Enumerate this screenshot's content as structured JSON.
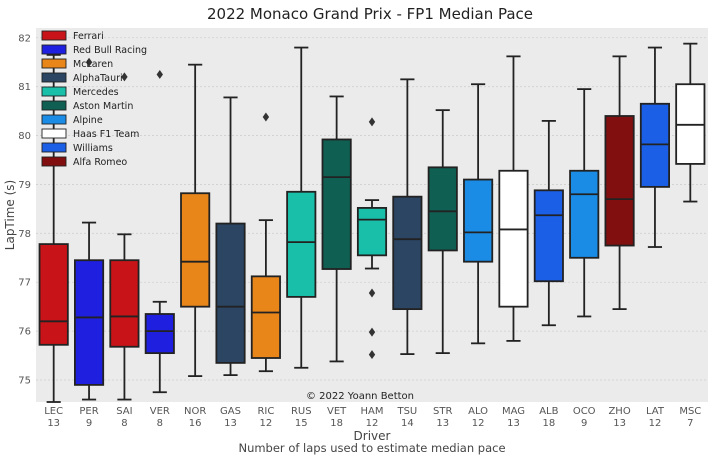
{
  "chart_data": {
    "type": "box",
    "title": "2022 Monaco Grand Prix - FP1 Median Pace",
    "ylabel": "LapTime (s)",
    "xlabel": "Driver",
    "xlabel2": "Number of laps used to estimate median pace",
    "watermark": "© 2022 Yoann Betton",
    "ylim": [
      74.55,
      82.2
    ],
    "yticks": [
      75,
      76,
      77,
      78,
      79,
      80,
      81,
      82
    ],
    "grid": true,
    "legend_position": "top-left",
    "legend": [
      {
        "name": "Ferrari",
        "color": "#c81418"
      },
      {
        "name": "Red Bull Racing",
        "color": "#1f1fe0"
      },
      {
        "name": "McLaren",
        "color": "#e8861a"
      },
      {
        "name": "AlphaTauri",
        "color": "#2b4562"
      },
      {
        "name": "Mercedes",
        "color": "#19bfa8"
      },
      {
        "name": "Aston Martin",
        "color": "#0f5f52"
      },
      {
        "name": "Alpine",
        "color": "#1a8ce6"
      },
      {
        "name": "Haas F1 Team",
        "color": "#ffffff"
      },
      {
        "name": "Williams",
        "color": "#1a5fe6"
      },
      {
        "name": "Alfa Romeo",
        "color": "#820f0f"
      }
    ],
    "drivers": [
      {
        "driver": "LEC",
        "laps": "13",
        "team": "Ferrari",
        "whisker_low": 74.55,
        "q1": 75.72,
        "median": 76.2,
        "q3": 77.78,
        "whisker_high": 81.65,
        "outliers": [
          81.75
        ]
      },
      {
        "driver": "PER",
        "laps": "9",
        "team": "Red Bull Racing",
        "whisker_low": 74.6,
        "q1": 74.9,
        "median": 76.28,
        "q3": 77.45,
        "whisker_high": 78.22,
        "outliers": [
          81.5
        ]
      },
      {
        "driver": "SAI",
        "laps": "8",
        "team": "Ferrari",
        "whisker_low": 74.6,
        "q1": 75.68,
        "median": 76.3,
        "q3": 77.45,
        "whisker_high": 77.98,
        "outliers": [
          81.2
        ]
      },
      {
        "driver": "VER",
        "laps": "8",
        "team": "Red Bull Racing",
        "whisker_low": 74.75,
        "q1": 75.55,
        "median": 76.0,
        "q3": 76.35,
        "whisker_high": 76.6,
        "outliers": [
          81.25
        ]
      },
      {
        "driver": "NOR",
        "laps": "16",
        "team": "McLaren",
        "whisker_low": 75.08,
        "q1": 76.5,
        "median": 77.42,
        "q3": 78.82,
        "whisker_high": 81.45,
        "outliers": []
      },
      {
        "driver": "GAS",
        "laps": "13",
        "team": "AlphaTauri",
        "whisker_low": 75.1,
        "q1": 75.35,
        "median": 76.5,
        "q3": 78.2,
        "whisker_high": 80.78,
        "outliers": []
      },
      {
        "driver": "RIC",
        "laps": "12",
        "team": "McLaren",
        "whisker_low": 75.18,
        "q1": 75.45,
        "median": 76.38,
        "q3": 77.12,
        "whisker_high": 78.27,
        "outliers": [
          80.38
        ]
      },
      {
        "driver": "RUS",
        "laps": "15",
        "team": "Mercedes",
        "whisker_low": 75.25,
        "q1": 76.7,
        "median": 77.82,
        "q3": 78.85,
        "whisker_high": 81.8,
        "outliers": []
      },
      {
        "driver": "VET",
        "laps": "18",
        "team": "Aston Martin",
        "whisker_low": 75.38,
        "q1": 77.27,
        "median": 79.15,
        "q3": 79.92,
        "whisker_high": 80.8,
        "outliers": []
      },
      {
        "driver": "HAM",
        "laps": "12",
        "team": "Mercedes",
        "whisker_low": 77.28,
        "q1": 77.55,
        "median": 78.28,
        "q3": 78.52,
        "whisker_high": 78.68,
        "outliers": [
          80.28,
          76.78,
          75.98,
          75.52
        ]
      },
      {
        "driver": "TSU",
        "laps": "14",
        "team": "AlphaTauri",
        "whisker_low": 75.53,
        "q1": 76.45,
        "median": 77.88,
        "q3": 78.75,
        "whisker_high": 81.15,
        "outliers": []
      },
      {
        "driver": "STR",
        "laps": "13",
        "team": "Aston Martin",
        "whisker_low": 75.55,
        "q1": 77.65,
        "median": 78.45,
        "q3": 79.35,
        "whisker_high": 80.52,
        "outliers": []
      },
      {
        "driver": "ALO",
        "laps": "12",
        "team": "Alpine",
        "whisker_low": 75.75,
        "q1": 77.42,
        "median": 78.02,
        "q3": 79.1,
        "whisker_high": 81.05,
        "outliers": []
      },
      {
        "driver": "MAG",
        "laps": "13",
        "team": "Haas F1 Team",
        "whisker_low": 75.8,
        "q1": 76.5,
        "median": 78.08,
        "q3": 79.28,
        "whisker_high": 81.62,
        "outliers": []
      },
      {
        "driver": "ALB",
        "laps": "18",
        "team": "Williams",
        "whisker_low": 76.12,
        "q1": 77.02,
        "median": 78.37,
        "q3": 78.88,
        "whisker_high": 80.3,
        "outliers": []
      },
      {
        "driver": "OCO",
        "laps": "9",
        "team": "Alpine",
        "whisker_low": 76.3,
        "q1": 77.5,
        "median": 78.8,
        "q3": 79.28,
        "whisker_high": 80.95,
        "outliers": []
      },
      {
        "driver": "ZHO",
        "laps": "13",
        "team": "Alfa Romeo",
        "whisker_low": 76.45,
        "q1": 77.75,
        "median": 78.7,
        "q3": 80.4,
        "whisker_high": 81.62,
        "outliers": []
      },
      {
        "driver": "LAT",
        "laps": "12",
        "team": "Williams",
        "whisker_low": 77.72,
        "q1": 78.95,
        "median": 79.82,
        "q3": 80.65,
        "whisker_high": 81.8,
        "outliers": []
      },
      {
        "driver": "MSC",
        "laps": "7",
        "team": "Haas F1 Team",
        "whisker_low": 78.65,
        "q1": 79.42,
        "median": 80.22,
        "q3": 81.05,
        "whisker_high": 81.88,
        "outliers": []
      }
    ]
  }
}
